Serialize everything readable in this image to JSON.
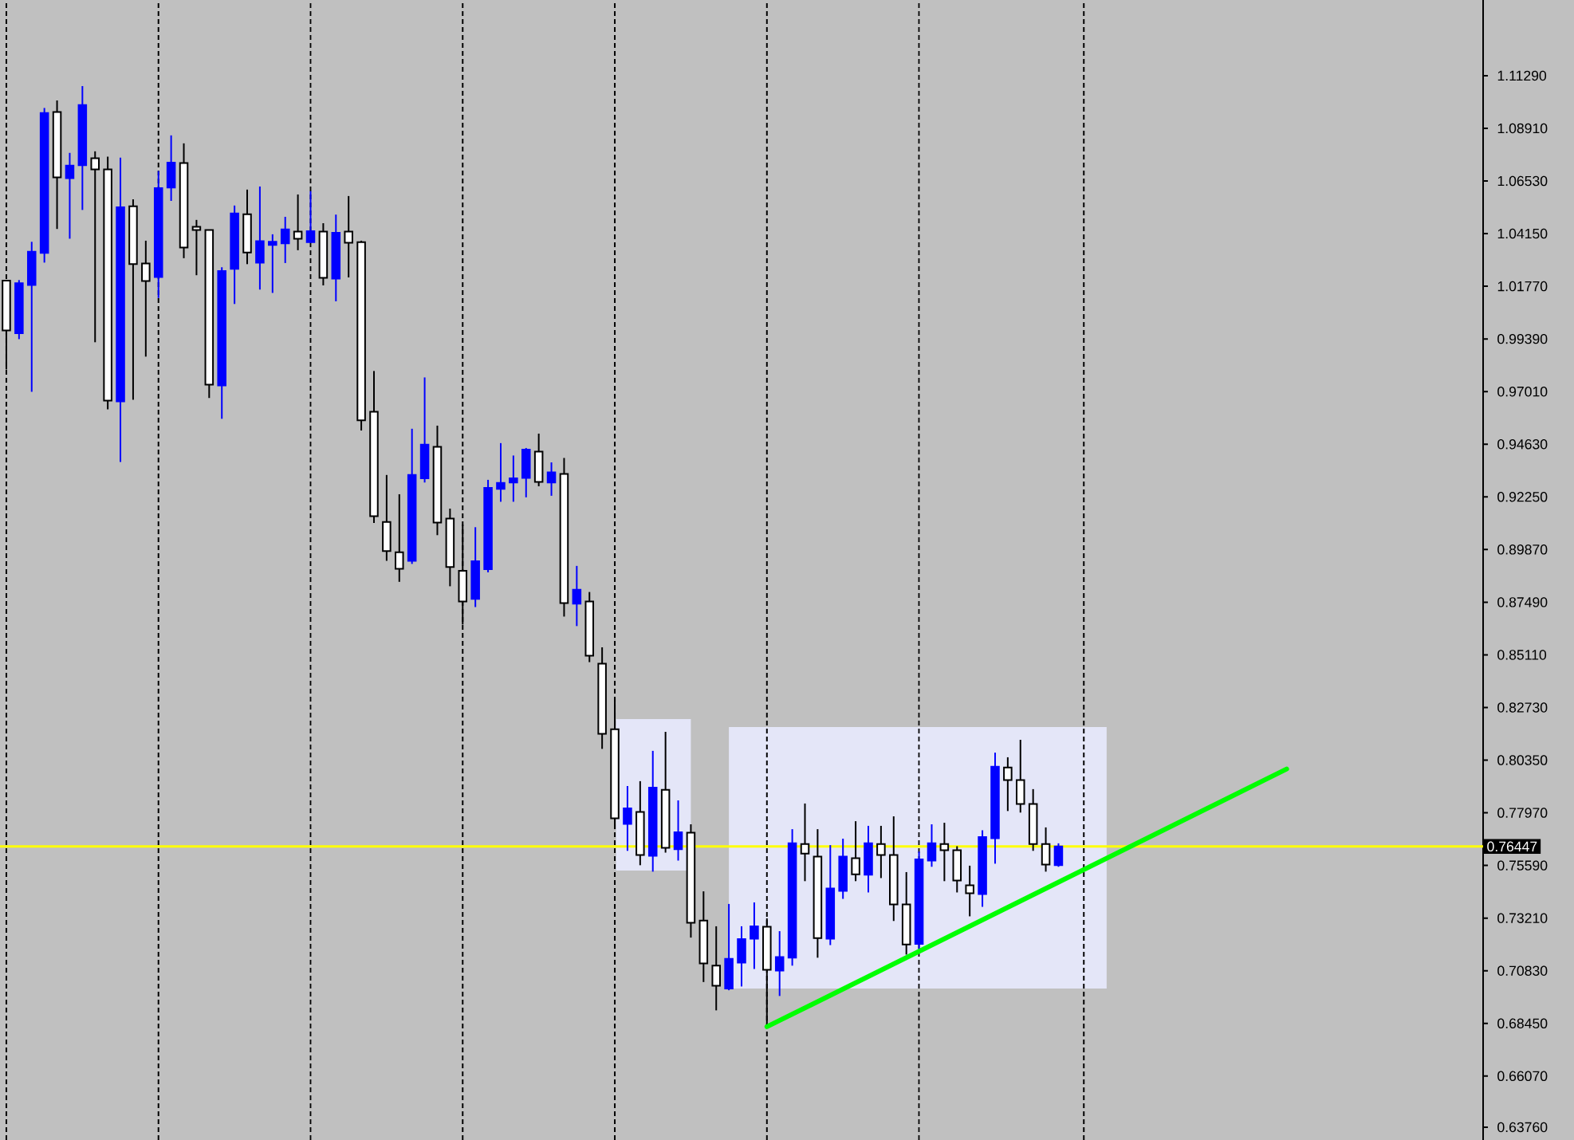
{
  "chart_data": {
    "type": "candlestick",
    "categories": [
      null,
      null,
      null,
      null,
      null,
      null,
      null,
      null,
      null,
      null,
      null,
      null,
      null,
      null,
      null,
      null,
      null,
      null,
      null,
      null,
      null,
      null,
      null,
      null,
      null,
      null,
      null,
      null,
      null,
      null,
      null,
      null,
      null,
      null,
      null,
      null,
      null,
      null,
      null,
      null,
      null,
      null,
      null,
      null,
      null,
      null,
      null,
      null,
      null,
      null,
      null,
      null,
      null,
      null,
      null,
      null,
      null,
      null,
      null,
      null,
      null,
      null,
      null,
      null,
      null,
      null,
      null,
      null,
      null,
      null,
      null,
      null,
      null,
      null,
      null,
      null,
      null,
      null,
      null,
      null,
      null,
      null,
      null,
      null,
      null,
      null,
      null,
      null,
      null,
      null,
      null,
      null,
      null,
      null,
      null,
      null,
      null,
      null,
      null,
      null,
      null,
      null,
      null,
      null,
      null,
      null,
      null,
      null,
      null,
      null,
      null,
      null,
      null,
      null,
      null,
      null,
      null
    ],
    "ohlc": [
      [
        1.0203,
        1.0203,
        0.9801,
        0.9977
      ],
      [
        0.9965,
        1.0205,
        0.9938,
        1.0191
      ],
      [
        1.0183,
        1.0378,
        0.97,
        1.0333
      ],
      [
        1.0328,
        1.0983,
        1.0284,
        1.096
      ],
      [
        1.0965,
        1.1017,
        1.0436,
        1.0669
      ],
      [
        1.0666,
        1.078,
        1.0392,
        1.0722
      ],
      [
        1.0724,
        1.1082,
        1.0522,
        1.0996
      ],
      [
        1.0756,
        1.0787,
        0.9924,
        1.0705
      ],
      [
        1.0705,
        1.0763,
        0.9621,
        0.966
      ],
      [
        0.9657,
        1.0758,
        0.9383,
        1.0534
      ],
      [
        1.0539,
        1.057,
        0.9664,
        1.0277
      ],
      [
        1.028,
        1.0383,
        0.9859,
        1.0201
      ],
      [
        1.0219,
        1.0698,
        1.0124,
        1.0621
      ],
      [
        1.0623,
        1.0859,
        1.0563,
        1.0736
      ],
      [
        1.0734,
        1.0823,
        1.0304,
        1.0352
      ],
      [
        1.0446,
        1.0477,
        1.0227,
        1.0431
      ],
      [
        1.0431,
        1.0431,
        0.9672,
        0.9732
      ],
      [
        0.9729,
        1.0263,
        0.9578,
        1.0246
      ],
      [
        1.0256,
        1.0542,
        1.0097,
        1.0506
      ],
      [
        1.0503,
        1.0614,
        1.0277,
        1.033
      ],
      [
        1.0284,
        1.0628,
        1.0162,
        1.0381
      ],
      [
        1.0364,
        1.0412,
        1.0147,
        1.0378
      ],
      [
        1.0371,
        1.0491,
        1.0282,
        1.0434
      ],
      [
        1.0424,
        1.0592,
        1.034,
        1.0392
      ],
      [
        1.0376,
        1.0607,
        1.0374,
        1.0426
      ],
      [
        1.0424,
        1.0462,
        1.0181,
        1.0215
      ],
      [
        1.0212,
        1.0501,
        1.0109,
        1.0419
      ],
      [
        1.0424,
        1.0585,
        1.0217,
        1.0374
      ],
      [
        1.0376,
        1.0383,
        0.9525,
        0.9571
      ],
      [
        0.961,
        0.9794,
        0.9107,
        0.9138
      ],
      [
        0.9112,
        0.9324,
        0.8936,
        0.898
      ],
      [
        0.8975,
        0.9237,
        0.8841,
        0.89
      ],
      [
        0.8936,
        0.9533,
        0.8922,
        0.9324
      ],
      [
        0.9309,
        0.9765,
        0.929,
        0.9461
      ],
      [
        0.9451,
        0.9547,
        0.9052,
        0.9109
      ],
      [
        0.9127,
        0.9172,
        0.8821,
        0.8908
      ],
      [
        0.8891,
        0.91,
        0.8648,
        0.8752
      ],
      [
        0.8764,
        0.9088,
        0.8727,
        0.8934
      ],
      [
        0.8898,
        0.9302,
        0.8884,
        0.9266
      ],
      [
        0.9261,
        0.9468,
        0.9203,
        0.9288
      ],
      [
        0.929,
        0.9412,
        0.9203,
        0.9309
      ],
      [
        0.9311,
        0.9446,
        0.9223,
        0.9439
      ],
      [
        0.943,
        0.9511,
        0.9273,
        0.9293
      ],
      [
        0.929,
        0.9381,
        0.923,
        0.9336
      ],
      [
        0.9329,
        0.9401,
        0.8684,
        0.8745
      ],
      [
        0.8742,
        0.8913,
        0.8641,
        0.8805
      ],
      [
        0.8752,
        0.8795,
        0.8478,
        0.8507
      ],
      [
        0.8471,
        0.8545,
        0.8086,
        0.8154
      ],
      [
        0.8175,
        0.832,
        0.7723,
        0.7772
      ],
      [
        0.7747,
        0.7918,
        0.7625,
        0.7817
      ],
      [
        0.7801,
        0.794,
        0.756,
        0.7606
      ],
      [
        0.7603,
        0.8077,
        0.7531,
        0.7911
      ],
      [
        0.7901,
        0.8163,
        0.7617,
        0.7639
      ],
      [
        0.7632,
        0.7853,
        0.7581,
        0.7709
      ],
      [
        0.7707,
        0.7745,
        0.7233,
        0.73
      ],
      [
        0.731,
        0.7442,
        0.7032,
        0.7116
      ],
      [
        0.7106,
        0.7284,
        0.6904,
        0.7015
      ],
      [
        0.7003,
        0.7385,
        0.6995,
        0.7137
      ],
      [
        0.712,
        0.7284,
        0.7012,
        0.7226
      ],
      [
        0.7228,
        0.7392,
        0.7091,
        0.7284
      ],
      [
        0.7282,
        0.732,
        0.6825,
        0.7087
      ],
      [
        0.7084,
        0.7262,
        0.6969,
        0.7145
      ],
      [
        0.7142,
        0.7723,
        0.7106,
        0.7659
      ],
      [
        0.7656,
        0.7839,
        0.7488,
        0.7613
      ],
      [
        0.7599,
        0.7723,
        0.7142,
        0.7231
      ],
      [
        0.7228,
        0.7651,
        0.7199,
        0.7455
      ],
      [
        0.7444,
        0.768,
        0.7408,
        0.7599
      ],
      [
        0.7592,
        0.7759,
        0.7488,
        0.7519
      ],
      [
        0.7517,
        0.7738,
        0.7437,
        0.7659
      ],
      [
        0.7656,
        0.7738,
        0.7502,
        0.7606
      ],
      [
        0.7606,
        0.7781,
        0.7308,
        0.7383
      ],
      [
        0.7383,
        0.7529,
        0.7156,
        0.7202
      ],
      [
        0.7204,
        0.7622,
        0.7166,
        0.7586
      ],
      [
        0.7581,
        0.7745,
        0.7553,
        0.7659
      ],
      [
        0.7656,
        0.7752,
        0.7488,
        0.7628
      ],
      [
        0.7628,
        0.7646,
        0.7437,
        0.7491
      ],
      [
        0.7469,
        0.7558,
        0.7329,
        0.7433
      ],
      [
        0.743,
        0.7718,
        0.7372,
        0.7687
      ],
      [
        0.7682,
        0.8069,
        0.7567,
        0.8005
      ],
      [
        0.8002,
        0.8048,
        0.7805,
        0.7945
      ],
      [
        0.7945,
        0.8127,
        0.7798,
        0.7837
      ],
      [
        0.7837,
        0.7904,
        0.7625,
        0.7656
      ],
      [
        0.7656,
        0.7731,
        0.7531,
        0.7563
      ],
      [
        0.756,
        0.7659,
        0.7553,
        0.7645
      ],
      null,
      null,
      null,
      null,
      null,
      null,
      null,
      null,
      null,
      null,
      null,
      null,
      null,
      null,
      null,
      null,
      null,
      null,
      null,
      null,
      null,
      null,
      null,
      null,
      null,
      null,
      null,
      null,
      null,
      null,
      null,
      null,
      null
    ],
    "colors": [
      "#ffffff",
      "#0000ff",
      "#0000ff",
      "#0000ff",
      "#ffffff",
      "#0000ff",
      "#0000ff",
      "#ffffff",
      "#ffffff",
      "#0000ff",
      "#ffffff",
      "#ffffff",
      "#0000ff",
      "#0000ff",
      "#ffffff",
      "#ffffff",
      "#ffffff",
      "#0000ff",
      "#0000ff",
      "#ffffff",
      "#0000ff",
      "#0000ff",
      "#0000ff",
      "#ffffff",
      "#0000ff",
      "#ffffff",
      "#0000ff",
      "#ffffff",
      "#ffffff",
      "#ffffff",
      "#ffffff",
      "#ffffff",
      "#0000ff",
      "#0000ff",
      "#ffffff",
      "#ffffff",
      "#ffffff",
      "#0000ff",
      "#0000ff",
      "#0000ff",
      "#0000ff",
      "#0000ff",
      "#ffffff",
      "#0000ff",
      "#ffffff",
      "#0000ff",
      "#ffffff",
      "#ffffff",
      "#ffffff",
      "#0000ff",
      "#ffffff",
      "#0000ff",
      "#ffffff",
      "#0000ff",
      "#ffffff",
      "#ffffff",
      "#ffffff",
      "#0000ff",
      "#0000ff",
      "#0000ff",
      "#ffffff",
      "#0000ff",
      "#0000ff",
      "#ffffff",
      "#ffffff",
      "#0000ff",
      "#0000ff",
      "#ffffff",
      "#0000ff",
      "#ffffff",
      "#ffffff",
      "#ffffff",
      "#0000ff",
      "#0000ff",
      "#ffffff",
      "#ffffff",
      "#ffffff",
      "#0000ff",
      "#0000ff",
      "#ffffff",
      "#ffffff",
      "#ffffff",
      "#ffffff",
      "#0000ff",
      null,
      null,
      null,
      null,
      null,
      null,
      null,
      null,
      null,
      null,
      null,
      null,
      null,
      null,
      null,
      null,
      null,
      null,
      null,
      null,
      null,
      null,
      null,
      null,
      null,
      null,
      null,
      null,
      null,
      null,
      null,
      null,
      null
    ],
    "series": [
      {
        "type": "line",
        "color": "#00ff00",
        "values": [
          null,
          null,
          null,
          null,
          null,
          null,
          null,
          null,
          null,
          null,
          null,
          null,
          null,
          null,
          null,
          null,
          null,
          null,
          null,
          null,
          null,
          null,
          null,
          null,
          null,
          null,
          null,
          null,
          null,
          null,
          null,
          null,
          null,
          null,
          null,
          null,
          null,
          null,
          null,
          null,
          null,
          null,
          null,
          null,
          null,
          null,
          null,
          null,
          null,
          null,
          null,
          null,
          null,
          null,
          null,
          null,
          null,
          null,
          null,
          null,
          0.683,
          null,
          null,
          null,
          null,
          null,
          null,
          null,
          null,
          null,
          null,
          null,
          null,
          null,
          null,
          null,
          null,
          null,
          null,
          null,
          null,
          null,
          null,
          null,
          null,
          null,
          null,
          null,
          null,
          null,
          null,
          null,
          null,
          null,
          null,
          null,
          null,
          null,
          null,
          null,
          null,
          0.7995,
          null,
          null,
          null,
          null,
          null,
          null,
          null,
          null,
          null,
          null,
          null,
          null,
          null,
          null,
          null
        ]
      }
    ],
    "ylim": [
      0.6318,
      1.1471
    ],
    "yticks": [
      {
        "value": 1.1129,
        "label": "1.11290"
      },
      {
        "value": 1.0891,
        "label": "1.08910"
      },
      {
        "value": 1.0653,
        "label": "1.06530"
      },
      {
        "value": 1.0415,
        "label": "1.04150"
      },
      {
        "value": 1.0177,
        "label": "1.01770"
      },
      {
        "value": 0.9939,
        "label": "0.99390"
      },
      {
        "value": 0.9701,
        "label": "0.97010"
      },
      {
        "value": 0.9463,
        "label": "0.94630"
      },
      {
        "value": 0.9225,
        "label": "0.92250"
      },
      {
        "value": 0.8987,
        "label": "0.89870"
      },
      {
        "value": 0.8749,
        "label": "0.87490"
      },
      {
        "value": 0.8511,
        "label": "0.85110"
      },
      {
        "value": 0.8273,
        "label": "0.82730"
      },
      {
        "value": 0.8035,
        "label": "0.80350"
      },
      {
        "value": 0.7797,
        "label": "0.77970"
      },
      {
        "value": 0.7559,
        "label": "0.75590"
      },
      {
        "value": 0.7321,
        "label": "0.73210"
      },
      {
        "value": 0.7083,
        "label": "0.70830"
      },
      {
        "value": 0.6845,
        "label": "0.68450"
      },
      {
        "value": 0.6607,
        "label": "0.66070"
      },
      {
        "value": 0.6376,
        "label": "0.63760"
      }
    ],
    "ref_lines": [
      {
        "axis": "y",
        "value": 0.76447,
        "label": "0.76447",
        "color": "#ffff00"
      }
    ],
    "grid": "x",
    "tick_labels": "y"
  }
}
